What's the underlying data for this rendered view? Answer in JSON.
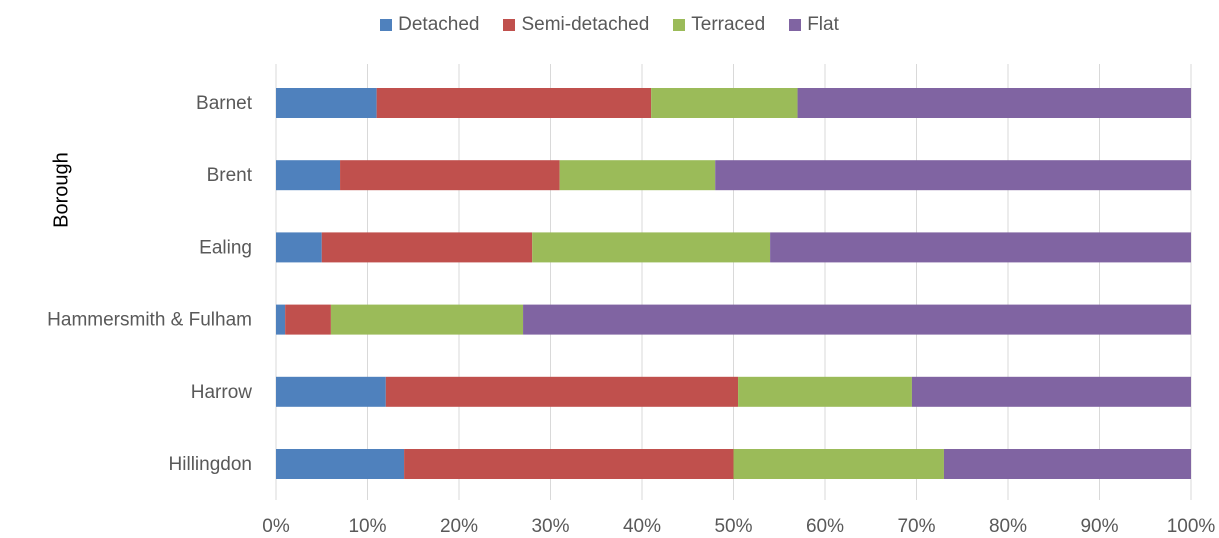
{
  "chart_data": {
    "type": "bar",
    "orientation": "horizontal",
    "stacked": "percent",
    "title": "",
    "ylabel": "Borough",
    "xlabel": "",
    "xlim": [
      0,
      100
    ],
    "x_ticks": [
      "0%",
      "10%",
      "20%",
      "30%",
      "40%",
      "50%",
      "60%",
      "70%",
      "80%",
      "90%",
      "100%"
    ],
    "categories": [
      "Barnet",
      "Brent",
      "Ealing",
      "Hammersmith & Fulham",
      "Harrow",
      "Hillingdon"
    ],
    "series": [
      {
        "name": "Detached",
        "color": "#4f81bd",
        "values": [
          11,
          7,
          5,
          1,
          12,
          14
        ]
      },
      {
        "name": "Semi-detached",
        "color": "#c0504d",
        "values": [
          30,
          24,
          23,
          5,
          38.5,
          36
        ]
      },
      {
        "name": "Terraced",
        "color": "#9bbb59",
        "values": [
          16,
          17,
          26,
          21,
          19,
          23
        ]
      },
      {
        "name": "Flat",
        "color": "#8064a2",
        "values": [
          43,
          52,
          46,
          73,
          30.5,
          27
        ]
      }
    ],
    "grid": true,
    "legend_position": "top"
  }
}
